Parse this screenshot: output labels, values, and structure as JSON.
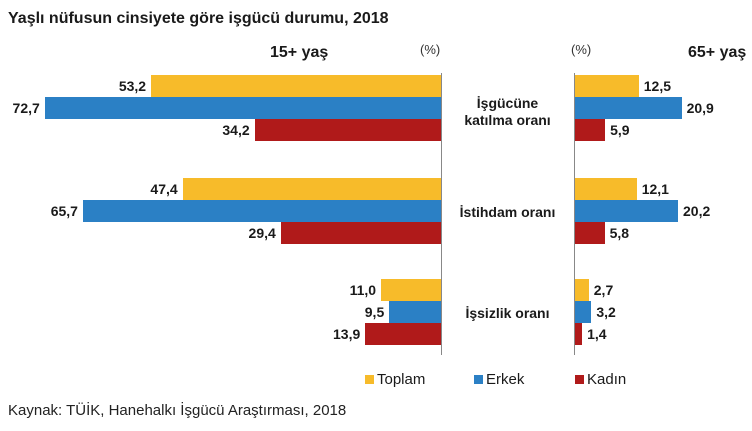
{
  "title": "Yaşlı nüfusun cinsiyete göre işgücü durumu, 2018",
  "source": "Kaynak: TÜİK, Hanehalkı İşgücü Araştırması, 2018",
  "panels": {
    "left": {
      "header": "15+ yaş",
      "unit": "(%)"
    },
    "right": {
      "header": "65+ yaş",
      "unit": "(%)"
    }
  },
  "colors": {
    "Toplam": "#f7bb2a",
    "Erkek": "#2b80c5",
    "Kadın": "#b01a1a"
  },
  "legend": [
    "Toplam",
    "Erkek",
    "Kadın"
  ],
  "chart_data": [
    {
      "type": "bar",
      "orientation": "horizontal",
      "title": "15+ yaş",
      "unit": "%",
      "categories": [
        "İşgücüne katılma oranı",
        "İstihdam oranı",
        "İşsizlik oranı"
      ],
      "series": [
        {
          "name": "Toplam",
          "values": [
            53.2,
            47.4,
            11.0
          ],
          "labels": [
            "53,2",
            "47,4",
            "11,0"
          ]
        },
        {
          "name": "Erkek",
          "values": [
            72.7,
            65.7,
            9.5
          ],
          "labels": [
            "72,7",
            "65,7",
            "9,5"
          ]
        },
        {
          "name": "Kadın",
          "values": [
            34.2,
            29.4,
            13.9
          ],
          "labels": [
            "34,2",
            "29,4",
            "13,9"
          ]
        }
      ],
      "direction": "bars extend leftward"
    },
    {
      "type": "bar",
      "orientation": "horizontal",
      "title": "65+ yaş",
      "unit": "%",
      "categories": [
        "İşgücüne katılma oranı",
        "İstihdam oranı",
        "İşsizlik oranı"
      ],
      "series": [
        {
          "name": "Toplam",
          "values": [
            12.5,
            12.1,
            2.7
          ],
          "labels": [
            "12,5",
            "12,1",
            "2,7"
          ]
        },
        {
          "name": "Erkek",
          "values": [
            20.9,
            20.2,
            3.2
          ],
          "labels": [
            "20,9",
            "20,2",
            "3,2"
          ]
        },
        {
          "name": "Kadın",
          "values": [
            5.9,
            5.8,
            1.4
          ],
          "labels": [
            "5,9",
            "5,8",
            "1,4"
          ]
        }
      ],
      "direction": "bars extend rightward"
    }
  ],
  "category_labels": [
    [
      "İşgücüne",
      "katılma oranı"
    ],
    [
      "İstihdam oranı"
    ],
    [
      "İşsizlik oranı"
    ]
  ]
}
